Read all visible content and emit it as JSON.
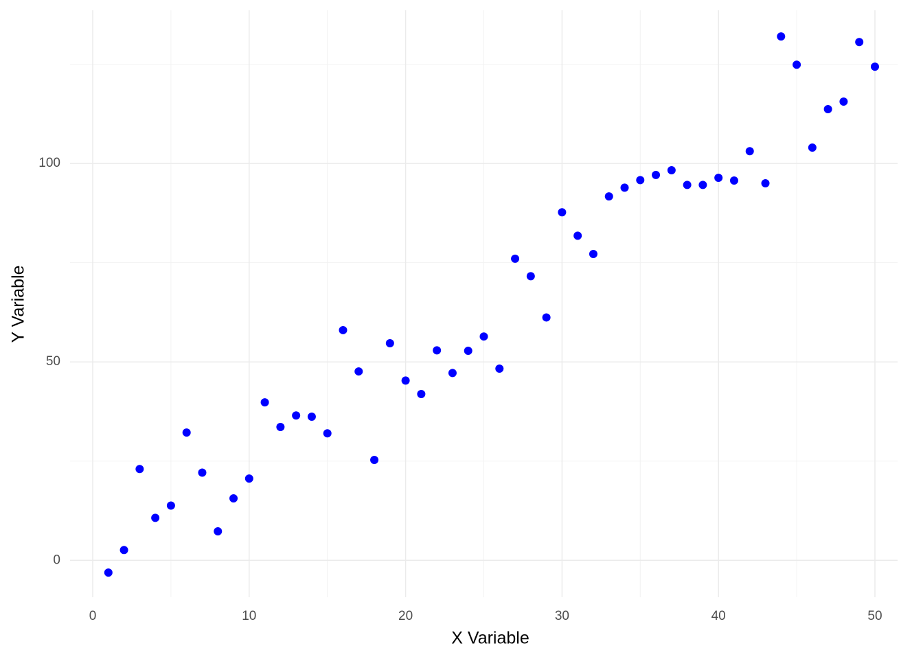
{
  "chart_data": {
    "type": "scatter",
    "x_label": "X Variable",
    "y_label": "Y Variable",
    "x": [
      1,
      2,
      3,
      4,
      5,
      6,
      7,
      8,
      9,
      10,
      11,
      12,
      13,
      14,
      15,
      16,
      17,
      18,
      19,
      20,
      21,
      22,
      23,
      24,
      25,
      26,
      27,
      28,
      29,
      30,
      31,
      32,
      33,
      34,
      35,
      36,
      37,
      38,
      39,
      40,
      41,
      42,
      43,
      44,
      45,
      46,
      47,
      48,
      49,
      50
    ],
    "series": [
      {
        "color": "#0000ff",
        "values": [
          -3.1,
          2.6,
          23.0,
          10.7,
          13.8,
          32.2,
          22.1,
          7.3,
          15.6,
          20.6,
          39.8,
          33.6,
          36.5,
          36.2,
          32.0,
          58.0,
          47.6,
          25.3,
          54.7,
          45.3,
          41.9,
          52.9,
          47.2,
          52.8,
          56.4,
          48.3,
          76.0,
          71.6,
          61.2,
          87.7,
          81.8,
          77.2,
          91.7,
          93.9,
          95.8,
          97.1,
          98.3,
          94.6,
          94.6,
          96.4,
          95.7,
          103.1,
          95.0,
          132.0,
          124.9,
          104.0,
          113.7,
          115.6,
          130.6,
          124.4
        ]
      }
    ],
    "xlim": [
      -1.45,
      51.45
    ],
    "ylim": [
      -9.3,
      138.6
    ],
    "xticks": [
      0,
      10,
      20,
      30,
      40,
      50
    ],
    "yticks": [
      0,
      50,
      100
    ],
    "x_minor_ticks": [
      5,
      15,
      25,
      35,
      45
    ],
    "y_minor_ticks": [
      25,
      75,
      125
    ],
    "grid": true
  }
}
